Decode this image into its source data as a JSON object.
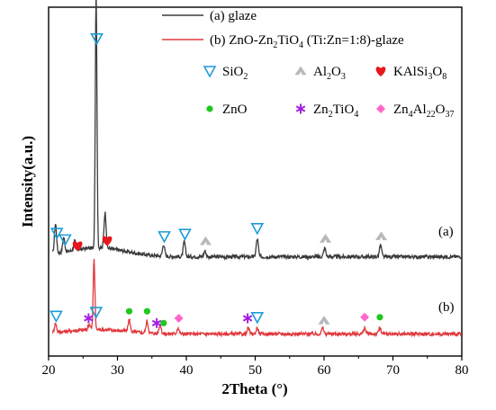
{
  "chart_data": {
    "type": "line",
    "xlabel": "2Theta (°)",
    "ylabel": "Intensity(a.u.)",
    "xlim": [
      20,
      80
    ],
    "xticks": [
      "20",
      "30",
      "40",
      "50",
      "60",
      "70",
      "80"
    ],
    "yticks_shown": false,
    "grid": false,
    "legend": {
      "placement": "top-right",
      "entries": [
        {
          "name": "(a) glaze",
          "color": "#3a3a3a"
        },
        {
          "name": "(b) ZnO-Zn2TiO4 (Ti:Zn=1:8)-glaze",
          "color": "#e0393e",
          "html": "(b) ZnO-Zn<sub>2</sub>TiO<sub>4</sub> (Ti:Zn=1:8)-glaze"
        }
      ]
    },
    "marker_legend": [
      {
        "phase": "SiO2",
        "symbol": "triangle-down",
        "color": "#1e9bd7"
      },
      {
        "phase": "Al2O3",
        "symbol": "tent",
        "color": "#b8b8b8"
      },
      {
        "phase": "KAlSi3O8",
        "symbol": "heart",
        "color": "#e8171c"
      },
      {
        "phase": "ZnO",
        "symbol": "circle",
        "color": "#1ec81e"
      },
      {
        "phase": "Zn2TiO4",
        "symbol": "asterisk",
        "color": "#a51ee0"
      },
      {
        "phase": "Zn4Al22O37",
        "symbol": "diamond",
        "color": "#ff66cc"
      }
    ],
    "curve_labels": [
      "(a)",
      "(b)"
    ],
    "series": [
      {
        "name": "(a) glaze",
        "color": "#3a3a3a",
        "baseline": 0.28,
        "peaks": [
          {
            "x": 21.0,
            "h": 0.1
          },
          {
            "x": 22.2,
            "h": 0.05
          },
          {
            "x": 23.8,
            "h": 0.03
          },
          {
            "x": 26.9,
            "h": 0.86
          },
          {
            "x": 28.2,
            "h": 0.12
          },
          {
            "x": 36.7,
            "h": 0.04
          },
          {
            "x": 39.7,
            "h": 0.05
          },
          {
            "x": 42.7,
            "h": 0.02
          },
          {
            "x": 50.3,
            "h": 0.06
          },
          {
            "x": 60.1,
            "h": 0.03
          },
          {
            "x": 68.2,
            "h": 0.04
          }
        ],
        "markers": [
          {
            "x": 21.2,
            "phase": "SiO2"
          },
          {
            "x": 22.4,
            "phase": "SiO2"
          },
          {
            "x": 24.2,
            "phase": "KAlSi3O8"
          },
          {
            "x": 27.0,
            "phase": "SiO2"
          },
          {
            "x": 28.5,
            "phase": "KAlSi3O8"
          },
          {
            "x": 36.8,
            "phase": "SiO2"
          },
          {
            "x": 39.8,
            "phase": "SiO2"
          },
          {
            "x": 42.8,
            "phase": "Al2O3"
          },
          {
            "x": 50.3,
            "phase": "SiO2"
          },
          {
            "x": 60.2,
            "phase": "Al2O3"
          },
          {
            "x": 68.3,
            "phase": "Al2O3"
          }
        ]
      },
      {
        "name": "(b) ZnO-Zn2TiO4 (Ti:Zn=1:8)-glaze",
        "color": "#e0393e",
        "baseline": 0.02,
        "peaks": [
          {
            "x": 21.0,
            "h": 0.03
          },
          {
            "x": 25.9,
            "h": 0.02
          },
          {
            "x": 26.6,
            "h": 0.24
          },
          {
            "x": 31.7,
            "h": 0.04
          },
          {
            "x": 34.3,
            "h": 0.04
          },
          {
            "x": 36.2,
            "h": 0.03
          },
          {
            "x": 38.8,
            "h": 0.02
          },
          {
            "x": 49.0,
            "h": 0.02
          },
          {
            "x": 50.3,
            "h": 0.02
          },
          {
            "x": 59.8,
            "h": 0.02
          },
          {
            "x": 65.9,
            "h": 0.02
          },
          {
            "x": 68.1,
            "h": 0.02
          }
        ],
        "markers": [
          {
            "x": 21.1,
            "phase": "SiO2"
          },
          {
            "x": 25.8,
            "phase": "Zn2TiO4"
          },
          {
            "x": 26.9,
            "phase": "SiO2"
          },
          {
            "x": 31.7,
            "phase": "ZnO"
          },
          {
            "x": 34.3,
            "phase": "ZnO"
          },
          {
            "x": 35.7,
            "phase": "Zn2TiO4"
          },
          {
            "x": 36.7,
            "phase": "ZnO"
          },
          {
            "x": 38.9,
            "phase": "Zn4Al22O37"
          },
          {
            "x": 48.9,
            "phase": "Zn2TiO4"
          },
          {
            "x": 50.3,
            "phase": "SiO2"
          },
          {
            "x": 60.0,
            "phase": "Al2O3"
          },
          {
            "x": 65.9,
            "phase": "Zn4Al22O37"
          },
          {
            "x": 68.1,
            "phase": "ZnO"
          }
        ]
      }
    ]
  }
}
